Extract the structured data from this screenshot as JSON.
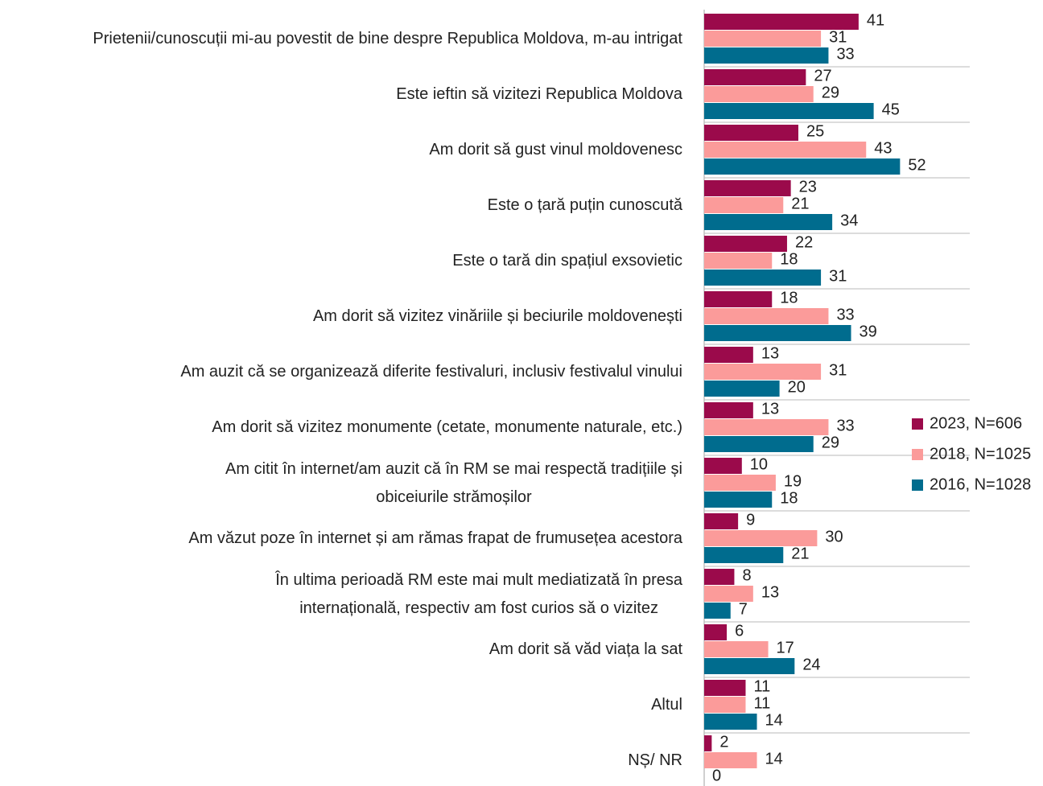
{
  "chart_data": {
    "type": "bar",
    "orientation": "horizontal",
    "categories": [
      "Prietenii/cunoscuții mi-au povestit de bine despre Republica Moldova, m-au intrigat",
      "Este ieftin să vizitezi Republica Moldova",
      "Am dorit să gust vinul moldovenesc",
      "Este o țară puțin cunoscută",
      "Este o tară din spațiul exsovietic",
      "Am dorit să vizitez vinăriile și beciurile moldovenești",
      "Am auzit că se organizează diferite festivaluri, inclusiv festivalul vinului",
      "Am dorit să vizitez monumente (cetate, monumente naturale, etc.)",
      "Am citit  în internet/am auzit că în RM se mai respectă tradițiile și\nobiceiurile strămoșilor",
      "Am văzut poze în internet și am rămas frapat de frumusețea acestora",
      "În ultima perioadă RM este mai mult mediatizată în presa\ninternațională, respectiv am fost curios să o vizitez",
      "Am dorit să văd viața la sat",
      "Altul",
      "NȘ/ NR"
    ],
    "series": [
      {
        "name": "2023, N=606",
        "color": "#9b0a4b",
        "values": [
          41,
          27,
          25,
          23,
          22,
          18,
          13,
          13,
          10,
          9,
          8,
          6,
          11,
          2
        ]
      },
      {
        "name": "2018, N=1025",
        "color": "#fb9b9a",
        "values": [
          31,
          29,
          43,
          21,
          18,
          33,
          31,
          33,
          19,
          30,
          13,
          17,
          11,
          14
        ]
      },
      {
        "name": "2016, N=1028",
        "color": "#006c8e",
        "values": [
          33,
          45,
          52,
          34,
          31,
          39,
          20,
          29,
          18,
          21,
          7,
          24,
          14,
          0
        ]
      }
    ],
    "legend": "right"
  }
}
